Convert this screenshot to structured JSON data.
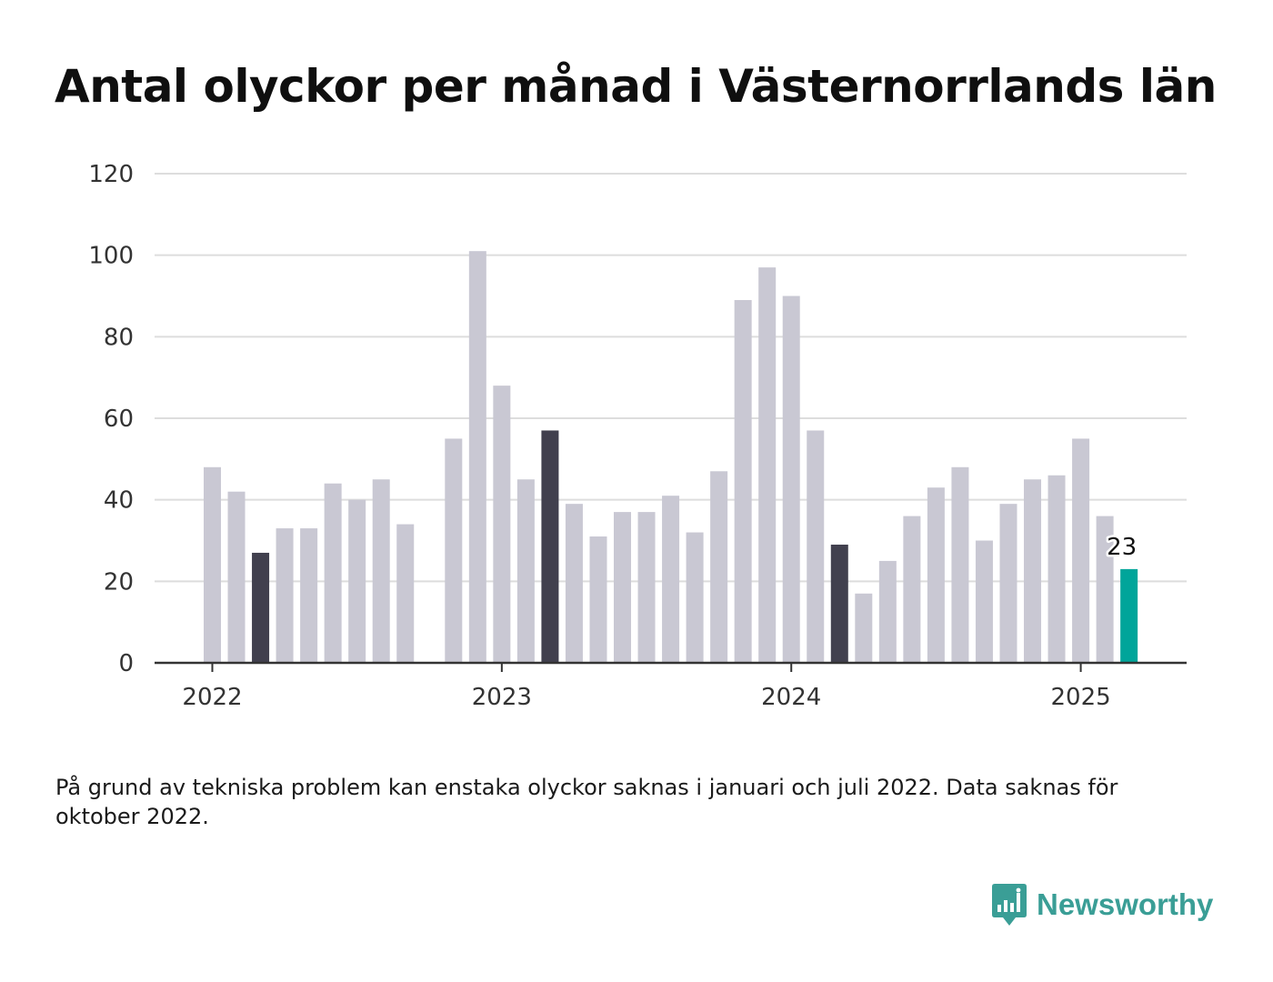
{
  "title": "Antal olyckor per månad i Västernorrlands län",
  "note": "På grund av tekniska problem kan enstaka olyckor saknas i januari och juli 2022. Data saknas för oktober 2022.",
  "logo": {
    "text": "Newsworthy",
    "icon": "bar-chart-speech-bubble-icon",
    "color": "#3a9e96"
  },
  "colors": {
    "bar": "#c9c8d3",
    "highlight": "#41404e",
    "current": "#00a59a",
    "grid": "#dddddd",
    "axis": "#333333"
  },
  "chart_data": {
    "type": "bar",
    "ylim": [
      0,
      120
    ],
    "y_ticks": [
      "0",
      "20",
      "40",
      "60",
      "80",
      "100",
      "120"
    ],
    "x_ticks": [
      {
        "label": "2022",
        "month": "2022-01"
      },
      {
        "label": "2023",
        "month": "2023-01"
      },
      {
        "label": "2024",
        "month": "2024-01"
      },
      {
        "label": "2025",
        "month": "2025-01"
      }
    ],
    "grid": true,
    "months": [
      "2022-01",
      "2022-02",
      "2022-03",
      "2022-04",
      "2022-05",
      "2022-06",
      "2022-07",
      "2022-08",
      "2022-09",
      "2022-10",
      "2022-11",
      "2022-12",
      "2023-01",
      "2023-02",
      "2023-03",
      "2023-04",
      "2023-05",
      "2023-06",
      "2023-07",
      "2023-08",
      "2023-09",
      "2023-10",
      "2023-11",
      "2023-12",
      "2024-01",
      "2024-02",
      "2024-03",
      "2024-04",
      "2024-05",
      "2024-06",
      "2024-07",
      "2024-08",
      "2024-09",
      "2024-10",
      "2024-11",
      "2024-12",
      "2025-01",
      "2025-02",
      "2025-03"
    ],
    "values": [
      48,
      42,
      27,
      33,
      33,
      44,
      40,
      45,
      34,
      null,
      55,
      101,
      68,
      45,
      57,
      39,
      31,
      37,
      37,
      41,
      32,
      47,
      89,
      97,
      90,
      57,
      29,
      17,
      25,
      36,
      43,
      48,
      30,
      39,
      45,
      46,
      55,
      36,
      23
    ],
    "highlighted_months": [
      "2022-03",
      "2023-03",
      "2024-03"
    ],
    "current_month": "2025-03",
    "data_label": "23"
  }
}
